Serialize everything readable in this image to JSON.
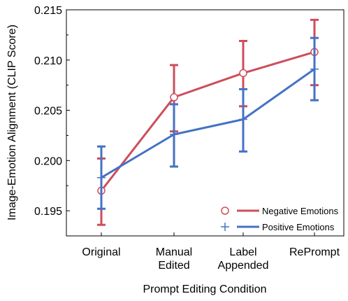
{
  "chart_data": {
    "type": "line",
    "title": "",
    "xlabel": "Prompt Editing Condition",
    "ylabel": "Image-Emotion Alignment (CLIP Score)",
    "categories": [
      [
        "Original"
      ],
      [
        "Manual",
        "Edited"
      ],
      [
        "Label",
        "Appended"
      ],
      [
        "RePrompt"
      ]
    ],
    "ylim": [
      0.1925,
      0.215
    ],
    "yticks": [
      "0.195",
      "0.200",
      "0.205",
      "0.210",
      "0.215"
    ],
    "ytick_values": [
      0.195,
      0.2,
      0.205,
      0.21,
      0.215
    ],
    "grid": false,
    "legend_position": "bottom-right",
    "series": [
      {
        "name": "Negative Emotions",
        "color": "#CC4E5C",
        "marker": "circle",
        "values": [
          0.197,
          0.2063,
          0.2087,
          0.2108
        ],
        "err_low": [
          0.1936,
          0.2029,
          0.2054,
          0.2075
        ],
        "err_high": [
          0.2002,
          0.2095,
          0.2119,
          0.214
        ]
      },
      {
        "name": "Positive Emotions",
        "color": "#4472C4",
        "marker": "plus",
        "values": [
          0.1983,
          0.2026,
          0.2041,
          0.2091
        ],
        "err_low": [
          0.1952,
          0.1994,
          0.2009,
          0.206
        ],
        "err_high": [
          0.2014,
          0.2056,
          0.2071,
          0.2122
        ]
      }
    ]
  }
}
